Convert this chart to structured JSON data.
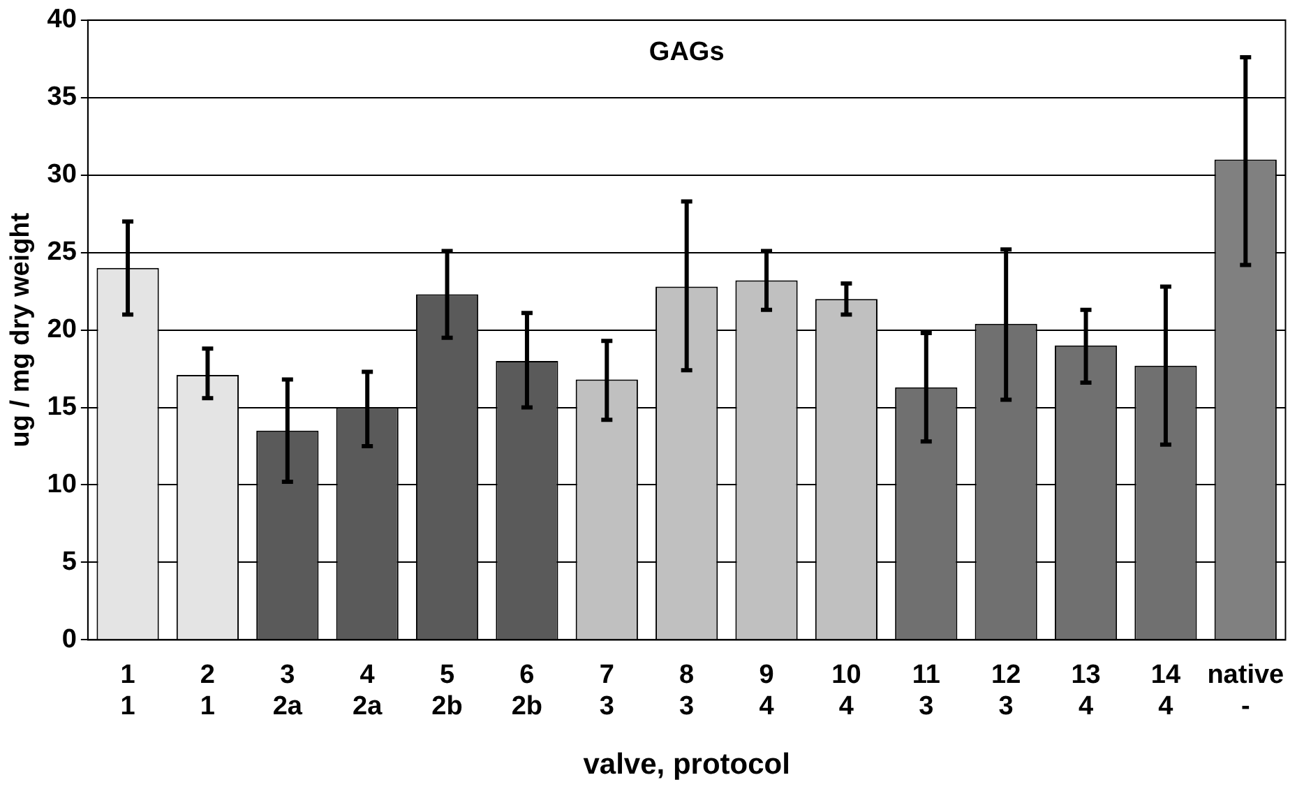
{
  "chart_data": {
    "type": "bar",
    "title": "GAGs",
    "xlabel": "valve, protocol",
    "ylabel": "ug / mg dry weight",
    "categories": [
      "1\n1",
      "2\n1",
      "3\n2a",
      "4\n2a",
      "5\n2b",
      "6\n2b",
      "7\n3",
      "8\n3",
      "9\n4",
      "10\n4",
      "11\n3",
      "12\n3",
      "13\n4",
      "14\n4",
      "native\n-"
    ],
    "values": [
      24,
      17.1,
      13.5,
      15,
      22.3,
      18,
      16.8,
      22.8,
      23.2,
      22,
      16.3,
      20.4,
      19,
      17.7,
      31
    ],
    "errors": [
      [
        21,
        27
      ],
      [
        15.6,
        18.8
      ],
      [
        10.2,
        16.8
      ],
      [
        12.5,
        17.3
      ],
      [
        19.5,
        25.1
      ],
      [
        15,
        21.1
      ],
      [
        14.2,
        19.3
      ],
      [
        17.4,
        28.3
      ],
      [
        21.3,
        25.1
      ],
      [
        21,
        23
      ],
      [
        12.8,
        19.8
      ],
      [
        15.5,
        25.2
      ],
      [
        16.6,
        21.3
      ],
      [
        12.6,
        22.8
      ],
      [
        24.2,
        37.6
      ]
    ],
    "colors": [
      "#e4e4e4",
      "#e4e4e4",
      "#5a5a5a",
      "#5a5a5a",
      "#5a5a5a",
      "#5a5a5a",
      "#c0c0c0",
      "#c0c0c0",
      "#c0c0c0",
      "#c0c0c0",
      "#707070",
      "#707070",
      "#707070",
      "#707070",
      "#808080"
    ],
    "ylim": [
      0,
      40
    ],
    "yticks": [
      0,
      5,
      10,
      15,
      20,
      25,
      30,
      35,
      40
    ],
    "grid": "y",
    "legend": false
  }
}
